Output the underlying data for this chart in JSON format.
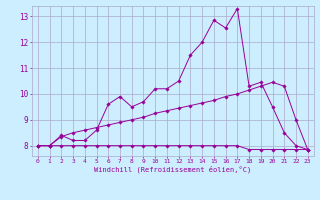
{
  "x_values": [
    0,
    1,
    2,
    3,
    4,
    5,
    6,
    7,
    8,
    9,
    10,
    11,
    12,
    13,
    14,
    15,
    16,
    17,
    18,
    19,
    20,
    21,
    22,
    23
  ],
  "line1_y": [
    8.0,
    8.0,
    8.4,
    8.2,
    8.2,
    8.6,
    9.6,
    9.9,
    9.5,
    9.7,
    10.2,
    10.2,
    10.5,
    11.5,
    12.0,
    12.85,
    12.55,
    13.3,
    10.3,
    10.45,
    9.5,
    8.5,
    8.0,
    7.85
  ],
  "line2_y": [
    8.0,
    8.0,
    8.35,
    8.5,
    8.6,
    8.7,
    8.8,
    8.9,
    9.0,
    9.1,
    9.25,
    9.35,
    9.45,
    9.55,
    9.65,
    9.75,
    9.9,
    10.0,
    10.15,
    10.3,
    10.45,
    10.3,
    9.0,
    7.85
  ],
  "line3_y": [
    8.0,
    8.0,
    8.0,
    8.0,
    8.0,
    8.0,
    8.0,
    8.0,
    8.0,
    8.0,
    8.0,
    8.0,
    8.0,
    8.0,
    8.0,
    8.0,
    8.0,
    8.0,
    7.85,
    7.85,
    7.85,
    7.85,
    7.85,
    7.85
  ],
  "line_color": "#990099",
  "bg_color": "#cceeff",
  "grid_color": "#aaaacc",
  "xlabel": "Windchill (Refroidissement éolien,°C)",
  "ylim": [
    7.6,
    13.4
  ],
  "xlim": [
    -0.5,
    23.5
  ],
  "yticks": [
    8,
    9,
    10,
    11,
    12,
    13
  ],
  "xticks": [
    0,
    1,
    2,
    3,
    4,
    5,
    6,
    7,
    8,
    9,
    10,
    11,
    12,
    13,
    14,
    15,
    16,
    17,
    18,
    19,
    20,
    21,
    22,
    23
  ]
}
